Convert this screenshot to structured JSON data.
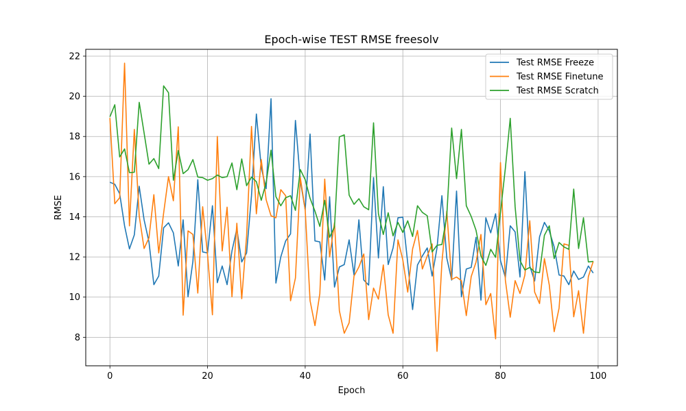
{
  "chart_data": {
    "type": "line",
    "title": "Epoch-wise TEST RMSE freesolv",
    "xlabel": "Epoch",
    "ylabel": "RMSE",
    "xlim": [
      -4.95,
      103.95
    ],
    "ylim": [
      6.58,
      22.34
    ],
    "xticks": [
      0,
      20,
      40,
      60,
      80,
      100
    ],
    "yticks": [
      8,
      10,
      12,
      14,
      16,
      18,
      20,
      22
    ],
    "grid": true,
    "legend_position": "top-right",
    "x": [
      0,
      1,
      2,
      3,
      4,
      5,
      6,
      7,
      8,
      9,
      10,
      11,
      12,
      13,
      14,
      15,
      16,
      17,
      18,
      19,
      20,
      21,
      22,
      23,
      24,
      25,
      26,
      27,
      28,
      29,
      30,
      31,
      32,
      33,
      34,
      35,
      36,
      37,
      38,
      39,
      40,
      41,
      42,
      43,
      44,
      45,
      46,
      47,
      48,
      49,
      50,
      51,
      52,
      53,
      54,
      55,
      56,
      57,
      58,
      59,
      60,
      61,
      62,
      63,
      64,
      65,
      66,
      67,
      68,
      69,
      70,
      71,
      72,
      73,
      74,
      75,
      76,
      77,
      78,
      79,
      80,
      81,
      82,
      83,
      84,
      85,
      86,
      87,
      88,
      89,
      90,
      91,
      92,
      93,
      94,
      95,
      96,
      97,
      98,
      99
    ],
    "series": [
      {
        "name": "Test RMSE Freeze",
        "color": "#1f77b4",
        "values": [
          15.72,
          15.62,
          15.15,
          13.55,
          12.4,
          13.1,
          15.52,
          13.85,
          12.75,
          10.62,
          11.05,
          13.45,
          13.7,
          13.2,
          11.55,
          13.85,
          10.02,
          11.78,
          15.85,
          12.25,
          12.2,
          14.55,
          10.72,
          11.55,
          10.62,
          12.3,
          13.4,
          11.75,
          12.2,
          15.05,
          19.12,
          16.45,
          15.4,
          19.88,
          10.7,
          12.0,
          12.8,
          13.15,
          18.8,
          15.8,
          14.35,
          18.12,
          12.8,
          12.75,
          10.85,
          15.0,
          10.5,
          11.5,
          11.62,
          12.85,
          11.1,
          13.85,
          10.85,
          10.6,
          15.95,
          11.95,
          15.5,
          11.62,
          12.45,
          13.95,
          13.98,
          11.7,
          9.38,
          11.6,
          12.05,
          12.45,
          11.05,
          12.45,
          15.05,
          11.95,
          10.85,
          15.28,
          10.02,
          11.4,
          11.48,
          12.98,
          9.85,
          13.95,
          13.2,
          14.15,
          11.82,
          10.98,
          13.55,
          13.25,
          11.0,
          16.25,
          11.55,
          10.8,
          13.0,
          13.72,
          13.3,
          12.5,
          11.1,
          11.05,
          10.62,
          11.3,
          10.88,
          11.0,
          11.55,
          11.2
        ]
      },
      {
        "name": "Test RMSE Finetune",
        "color": "#ff7f0e",
        "values": [
          18.92,
          14.65,
          14.95,
          21.65,
          13.55,
          18.35,
          14.05,
          12.42,
          12.95,
          15.1,
          12.2,
          14.18,
          16.0,
          14.8,
          18.48,
          9.1,
          13.3,
          13.12,
          10.2,
          14.5,
          12.1,
          9.12,
          18.0,
          12.3,
          14.48,
          10.02,
          13.68,
          9.92,
          13.05,
          18.5,
          14.15,
          16.85,
          14.85,
          14.05,
          13.95,
          15.35,
          15.05,
          9.82,
          10.95,
          15.95,
          14.35,
          9.82,
          8.58,
          10.18,
          15.88,
          12.0,
          13.7,
          9.32,
          8.2,
          8.72,
          11.05,
          11.5,
          12.15,
          8.88,
          10.45,
          9.9,
          11.6,
          9.12,
          8.2,
          12.85,
          11.85,
          10.25,
          12.4,
          13.32,
          11.4,
          12.05,
          12.65,
          7.3,
          11.72,
          14.28,
          10.88,
          11.0,
          10.82,
          9.08,
          11.02,
          11.75,
          13.12,
          9.62,
          10.18,
          7.92,
          16.7,
          10.85,
          9.0,
          10.82,
          10.18,
          11.1,
          13.8,
          10.25,
          9.68,
          11.92,
          10.6,
          8.28,
          9.45,
          12.65,
          12.58,
          9.02,
          10.32,
          8.2,
          11.02,
          11.78
        ]
      },
      {
        "name": "Test RMSE Scratch",
        "color": "#2ca02c",
        "values": [
          18.98,
          19.58,
          16.98,
          17.38,
          16.2,
          16.22,
          19.7,
          18.18,
          16.62,
          16.9,
          16.4,
          20.52,
          20.18,
          15.82,
          17.3,
          16.15,
          16.35,
          16.85,
          15.98,
          15.95,
          15.82,
          15.9,
          16.08,
          15.95,
          16.0,
          16.68,
          15.35,
          16.88,
          15.55,
          15.98,
          15.75,
          14.82,
          15.7,
          17.32,
          15.0,
          14.55,
          14.95,
          15.05,
          14.32,
          16.35,
          15.85,
          14.92,
          14.28,
          13.52,
          14.82,
          12.98,
          13.5,
          17.98,
          18.08,
          15.08,
          14.62,
          14.9,
          14.5,
          14.35,
          18.68,
          14.15,
          13.12,
          14.2,
          13.05,
          13.72,
          13.22,
          13.8,
          13.02,
          14.55,
          14.22,
          14.05,
          12.25,
          12.58,
          12.62,
          14.05,
          18.42,
          15.9,
          18.35,
          14.55,
          14.02,
          13.32,
          12.05,
          11.58,
          12.38,
          11.98,
          14.22,
          16.42,
          18.9,
          14.5,
          11.82,
          11.35,
          11.48,
          11.25,
          11.22,
          13.08,
          13.55,
          11.92,
          12.72,
          12.5,
          12.38,
          15.38,
          12.42,
          13.95,
          11.75,
          11.78
        ]
      }
    ]
  }
}
